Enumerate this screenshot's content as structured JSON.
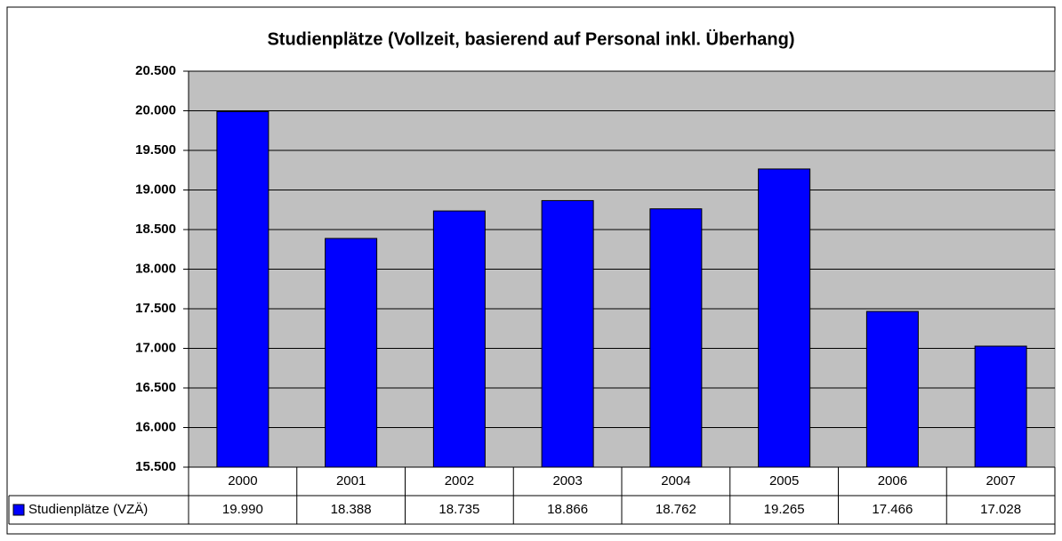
{
  "chart_data": {
    "type": "bar",
    "title": "Studienplätze (Vollzeit, basierend auf Personal inkl. Überhang)",
    "categories": [
      "2000",
      "2001",
      "2002",
      "2003",
      "2004",
      "2005",
      "2006",
      "2007"
    ],
    "series": [
      {
        "name": "Studienplätze (VZÄ)",
        "color": "#0000ff",
        "values": [
          19990,
          18388,
          18735,
          18866,
          18762,
          19265,
          17466,
          17028
        ],
        "value_labels": [
          "19.990",
          "18.388",
          "18.735",
          "18.866",
          "18.762",
          "19.265",
          "17.466",
          "17.028"
        ]
      }
    ],
    "ylim": [
      15500,
      20500
    ],
    "yticks": [
      {
        "value": 15500,
        "label": "15.500"
      },
      {
        "value": 16000,
        "label": "16.000"
      },
      {
        "value": 16500,
        "label": "16.500"
      },
      {
        "value": 17000,
        "label": "17.000"
      },
      {
        "value": 17500,
        "label": "17.500"
      },
      {
        "value": 18000,
        "label": "18.000"
      },
      {
        "value": 18500,
        "label": "18.500"
      },
      {
        "value": 19000,
        "label": "19.000"
      },
      {
        "value": 19500,
        "label": "19.500"
      },
      {
        "value": 20000,
        "label": "20.000"
      },
      {
        "value": 20500,
        "label": "20.500"
      }
    ],
    "grid": true,
    "plot_background": "#c0c0c0"
  }
}
